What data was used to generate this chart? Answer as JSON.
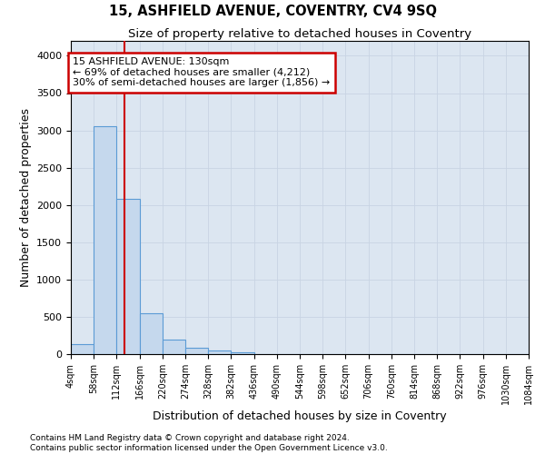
{
  "title": "15, ASHFIELD AVENUE, COVENTRY, CV4 9SQ",
  "subtitle": "Size of property relative to detached houses in Coventry",
  "xlabel": "Distribution of detached houses by size in Coventry",
  "ylabel": "Number of detached properties",
  "footer_line1": "Contains HM Land Registry data © Crown copyright and database right 2024.",
  "footer_line2": "Contains public sector information licensed under the Open Government Licence v3.0.",
  "bar_color": "#c5d8ed",
  "bar_edge_color": "#5b9bd5",
  "grid_color": "#c8d4e3",
  "background_color": "#dce6f1",
  "property_size": 130,
  "property_line_color": "#cc0000",
  "annotation_text_line1": "15 ASHFIELD AVENUE: 130sqm",
  "annotation_text_line2": "← 69% of detached houses are smaller (4,212)",
  "annotation_text_line3": "30% of semi-detached houses are larger (1,856) →",
  "annotation_box_color": "#cc0000",
  "bin_edges": [
    4,
    58,
    112,
    166,
    220,
    274,
    328,
    382,
    436,
    490,
    544,
    598,
    652,
    706,
    760,
    814,
    868,
    922,
    976,
    1030,
    1084
  ],
  "bin_counts": [
    130,
    3050,
    2080,
    550,
    195,
    80,
    50,
    30,
    0,
    0,
    0,
    0,
    0,
    0,
    0,
    0,
    0,
    0,
    0,
    0
  ],
  "ylim": [
    0,
    4200
  ],
  "yticks": [
    0,
    500,
    1000,
    1500,
    2000,
    2500,
    3000,
    3500,
    4000
  ],
  "tick_labels": [
    "4sqm",
    "58sqm",
    "112sqm",
    "166sqm",
    "220sqm",
    "274sqm",
    "328sqm",
    "382sqm",
    "436sqm",
    "490sqm",
    "544sqm",
    "598sqm",
    "652sqm",
    "706sqm",
    "760sqm",
    "814sqm",
    "868sqm",
    "922sqm",
    "976sqm",
    "1030sqm",
    "1084sqm"
  ]
}
